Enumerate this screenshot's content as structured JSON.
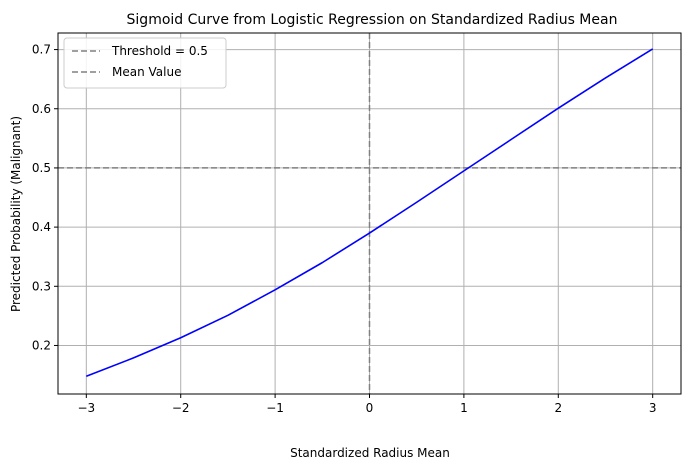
{
  "chart_data": {
    "type": "line",
    "title": "Sigmoid Curve from Logistic Regression on Standardized Radius Mean",
    "xlabel": "Standardized Radius Mean",
    "ylabel": "Predicted Probability (Malignant)",
    "xlim": [
      -3.3,
      3.3
    ],
    "ylim": [
      0.118,
      0.728
    ],
    "xticks": [
      -3,
      -2,
      -1,
      0,
      1,
      2,
      3
    ],
    "xtick_labels": [
      "−3",
      "−2",
      "−1",
      "0",
      "1",
      "2",
      "3"
    ],
    "yticks": [
      0.2,
      0.3,
      0.4,
      0.5,
      0.6,
      0.7
    ],
    "ytick_labels": [
      "0.2",
      "0.3",
      "0.4",
      "0.5",
      "0.6",
      "0.7"
    ],
    "grid": true,
    "series": [
      {
        "color": "#0000ff",
        "x": [
          -3,
          -2.5,
          -2,
          -1.5,
          -1,
          -0.5,
          0,
          0.5,
          1,
          1.5,
          2,
          2.5,
          3
        ],
        "y": [
          0.148,
          0.179,
          0.213,
          0.251,
          0.294,
          0.34,
          0.39,
          0.442,
          0.495,
          0.548,
          0.601,
          0.652,
          0.701
        ]
      }
    ],
    "reference_lines": [
      {
        "orientation": "horizontal",
        "value": 0.5,
        "label": "Threshold = 0.5",
        "color": "#808080",
        "dash": "dashed"
      },
      {
        "orientation": "vertical",
        "value": 0,
        "label": "Mean Value",
        "color": "#808080",
        "dash": "dashed"
      }
    ],
    "legend_position": "top-left"
  }
}
